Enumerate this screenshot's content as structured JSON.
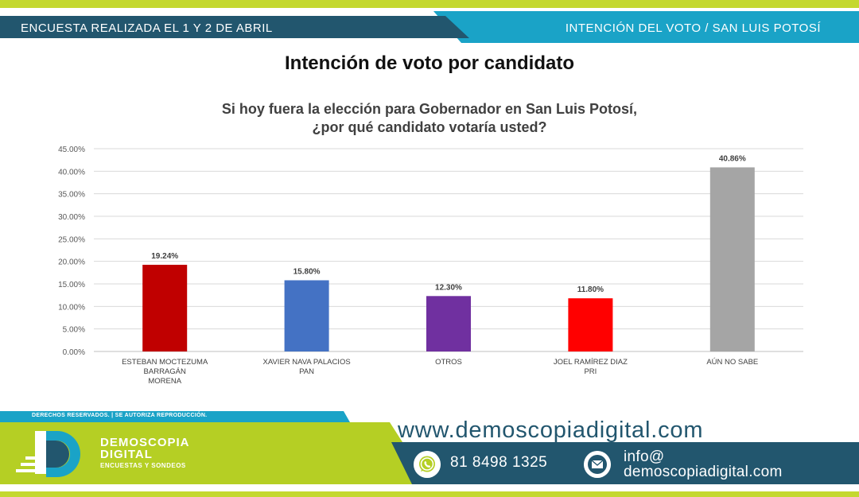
{
  "header": {
    "left_text": "ENCUESTA REALIZADA EL 1 Y 2 DE ABRIL",
    "right_text": "INTENCIÓN DEL VOTO / SAN LUIS POTOSÍ"
  },
  "main_title": "Intención de voto por candidato",
  "chart_data": {
    "type": "bar",
    "title_lines": [
      "Si hoy fuera la elección para Gobernador en San Luis Potosí,",
      "¿por qué candidato votaría usted?"
    ],
    "categories": [
      [
        "ESTEBAN MOCTEZUMA",
        "BARRAGÁN",
        "MORENA"
      ],
      [
        "XAVIER NAVA PALACIOS",
        "PAN"
      ],
      [
        "OTROS"
      ],
      [
        "JOEL RAMÍREZ DIAZ",
        "PRI"
      ],
      [
        "AÚN NO SABE"
      ]
    ],
    "values": [
      19.24,
      15.8,
      12.3,
      11.8,
      40.86
    ],
    "value_labels": [
      "19.24%",
      "15.80%",
      "12.30%",
      "11.80%",
      "40.86%"
    ],
    "colors": [
      "#c00000",
      "#4472c4",
      "#7030a0",
      "#ff0000",
      "#a5a5a5"
    ],
    "ylim": [
      0,
      45
    ],
    "yticks": [
      "0.00%",
      "5.00%",
      "10.00%",
      "15.00%",
      "20.00%",
      "25.00%",
      "30.00%",
      "35.00%",
      "40.00%",
      "45.00%"
    ],
    "grid": true
  },
  "footer": {
    "rights": "DERECHOS RESERVADOS.  |  SE AUTORIZA REPRODUCCIÓN.",
    "brand_line1": "DEMOSCOPIA",
    "brand_line2": "DIGITAL",
    "brand_tagline": "ENCUESTAS Y SONDEOS",
    "website": "www.demoscopiadigital.com",
    "phone": "81 8498 1325",
    "email_line1": "info@",
    "email_line2": "demoscopiadigital.com",
    "whatsapp_icon": "whatsapp-icon",
    "mail_icon": "mail-icon",
    "colors": {
      "navy": "#22566e",
      "cyan": "#1aa3c7",
      "lime": "#b5cf24"
    }
  }
}
